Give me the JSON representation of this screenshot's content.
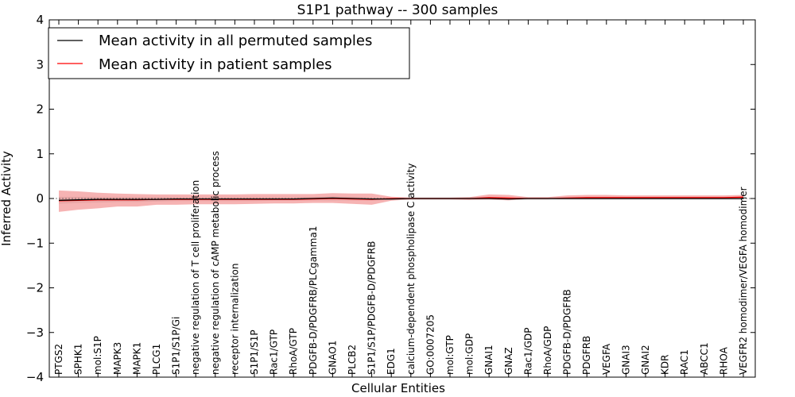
{
  "chart_data": {
    "type": "line",
    "title": "S1P1 pathway -- 300 samples",
    "xlabel": "Cellular Entities",
    "ylabel": "Inferred Activity",
    "ylim": [
      -4,
      4
    ],
    "yticks": [
      "4",
      "3",
      "2",
      "1",
      "0",
      "−1",
      "−2",
      "−3",
      "−4"
    ],
    "grid": false,
    "legend_placement": "top-left",
    "categories": [
      "PTGS2",
      "SPHK1",
      "mol:S1P",
      "MAPK3",
      "MAPK1",
      "PLCG1",
      "S1P1/S1P/Gi",
      "negative regulation of T cell proliferation",
      "negative regulation of cAMP metabolic process",
      "receptor internalization",
      "S1P1/S1P",
      "Rac1/GTP",
      "RhoA/GTP",
      "PDGFB-D/PDGFRB/PLCgamma1",
      "GNAO1",
      "PLCB2",
      "S1P1/S1P/PDGFB-D/PDGFRB",
      "EDG1",
      "calcium-dependent phospholipase C activity",
      "GO:0007205",
      "mol:GTP",
      "mol:GDP",
      "GNAI1",
      "GNAZ",
      "Rac1/GDP",
      "RhoA/GDP",
      "PDGFB-D/PDGFRB",
      "PDGFRB",
      "VEGFA",
      "GNAI3",
      "GNAI2",
      "KDR",
      "RAC1",
      "ABCC1",
      "RHOA",
      "VEGFR2 homodimer/VEGFA homodimer"
    ],
    "series": [
      {
        "name": "Mean activity in all permuted samples",
        "color": "#000000",
        "values": [
          -0.04,
          -0.03,
          -0.02,
          -0.02,
          -0.02,
          -0.02,
          -0.01,
          -0.01,
          -0.01,
          -0.01,
          -0.01,
          -0.01,
          -0.01,
          0.0,
          0.01,
          0.0,
          -0.01,
          -0.01,
          0.0,
          0.0,
          0.0,
          0.0,
          0.0,
          -0.01,
          0.0,
          0.0,
          0.0,
          0.0,
          0.0,
          0.0,
          0.0,
          0.0,
          0.0,
          0.0,
          0.0,
          0.0
        ],
        "band_low": [
          -0.12,
          -0.1,
          -0.09,
          -0.08,
          -0.08,
          -0.07,
          -0.06,
          -0.06,
          -0.06,
          -0.06,
          -0.06,
          -0.05,
          -0.05,
          -0.05,
          -0.05,
          -0.05,
          -0.05,
          -0.03,
          -0.03,
          -0.03,
          -0.03,
          -0.03,
          -0.03,
          -0.04,
          -0.03,
          -0.03,
          -0.03,
          -0.03,
          -0.03,
          -0.03,
          -0.03,
          -0.03,
          -0.03,
          -0.03,
          -0.03,
          -0.03
        ],
        "band_high": [
          0.04,
          0.04,
          0.04,
          0.04,
          0.04,
          0.04,
          0.04,
          0.04,
          0.04,
          0.04,
          0.04,
          0.04,
          0.04,
          0.04,
          0.05,
          0.04,
          0.03,
          0.02,
          0.02,
          0.02,
          0.02,
          0.02,
          0.02,
          0.02,
          0.02,
          0.02,
          0.02,
          0.02,
          0.02,
          0.02,
          0.02,
          0.02,
          0.02,
          0.02,
          0.02,
          0.02
        ]
      },
      {
        "name": "Mean activity in patient samples",
        "color": "#ff0000",
        "values": [
          -0.05,
          -0.04,
          -0.03,
          -0.03,
          -0.03,
          -0.02,
          -0.02,
          -0.02,
          -0.02,
          -0.02,
          -0.02,
          -0.02,
          -0.02,
          -0.01,
          0.0,
          -0.01,
          -0.02,
          0.0,
          0.0,
          0.0,
          0.0,
          0.0,
          0.02,
          0.01,
          0.0,
          0.0,
          0.01,
          0.02,
          0.02,
          0.02,
          0.02,
          0.02,
          0.02,
          0.02,
          0.02,
          0.03
        ],
        "band_low": [
          -0.3,
          -0.25,
          -0.22,
          -0.18,
          -0.18,
          -0.14,
          -0.14,
          -0.13,
          -0.13,
          -0.13,
          -0.12,
          -0.11,
          -0.11,
          -0.1,
          -0.1,
          -0.12,
          -0.14,
          -0.05,
          -0.02,
          -0.02,
          -0.02,
          -0.03,
          -0.02,
          -0.04,
          -0.01,
          -0.01,
          0.0,
          0.0,
          0.0,
          0.0,
          0.0,
          0.0,
          0.0,
          0.0,
          0.0,
          0.0
        ],
        "band_high": [
          0.18,
          0.16,
          0.13,
          0.11,
          0.1,
          0.09,
          0.09,
          0.09,
          0.09,
          0.09,
          0.1,
          0.1,
          0.1,
          0.1,
          0.12,
          0.11,
          0.11,
          0.04,
          0.02,
          0.02,
          0.02,
          0.03,
          0.09,
          0.08,
          0.03,
          0.03,
          0.07,
          0.08,
          0.08,
          0.07,
          0.07,
          0.07,
          0.07,
          0.07,
          0.07,
          0.08
        ]
      }
    ]
  }
}
